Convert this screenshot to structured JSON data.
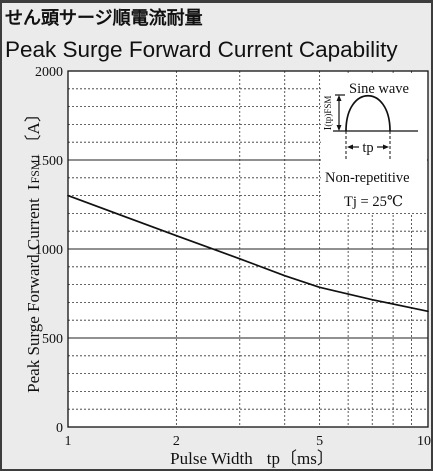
{
  "chart_data": {
    "type": "line",
    "title_ja": "せん頭サージ順電流耐量",
    "title": "Peak Surge Forward Current Capability",
    "xlabel": {
      "text": "Pulse Width",
      "symbol": "tp",
      "unit": "〔ms〕"
    },
    "ylabel": {
      "text": "Peak Surge Forward Current",
      "symbol": "I",
      "subscript": "FSM1",
      "unit": "〔A〕"
    },
    "x_scale": "log",
    "xlim": [
      1,
      10
    ],
    "ylim": [
      0,
      2000
    ],
    "x_ticks": [
      1,
      2,
      5,
      10
    ],
    "y_ticks": [
      0,
      500,
      1000,
      1500,
      2000
    ],
    "grid": true,
    "series": [
      {
        "x": [
          1,
          2,
          3,
          4,
          5,
          7,
          10
        ],
        "y": [
          1300,
          1075,
          945,
          850,
          785,
          715,
          650
        ]
      }
    ],
    "inset": {
      "waveform": "Sine wave",
      "peak_label": {
        "symbol": "I",
        "subscript": "(tp)FSM"
      },
      "width_label": "tp",
      "condition": "Non-repetitive",
      "temperature": "Tj = 25℃"
    }
  }
}
